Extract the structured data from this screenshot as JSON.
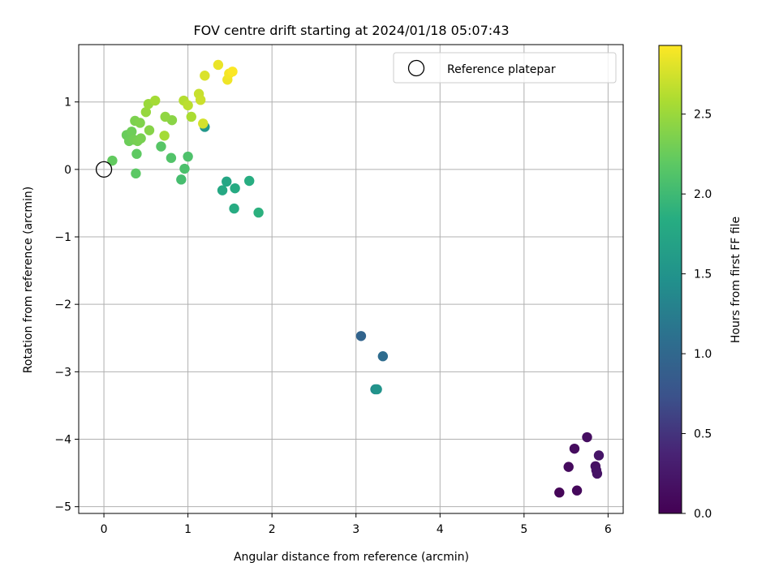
{
  "chart_data": {
    "type": "scatter",
    "title": "FOV centre drift starting at 2024/01/18 05:07:43",
    "xlabel": "Angular distance from reference (arcmin)",
    "ylabel": "Rotation from reference (arcmin)",
    "xlim": [
      -0.3,
      6.18
    ],
    "ylim": [
      -5.1,
      1.85
    ],
    "x_ticks": [
      0,
      1,
      2,
      3,
      4,
      5,
      6
    ],
    "y_ticks": [
      -5,
      -4,
      -3,
      -2,
      -1,
      0,
      1
    ],
    "grid": true,
    "legend": {
      "position": "top-right",
      "entries": [
        "Reference platepar"
      ]
    },
    "reference_point": {
      "x": 0,
      "y": 0,
      "label": "Reference platepar"
    },
    "colorbar": {
      "label": "Hours from first FF file",
      "colormap": "viridis",
      "range": [
        0,
        2.93
      ],
      "ticks": [
        0.0,
        0.5,
        1.0,
        1.5,
        2.0,
        2.5
      ]
    },
    "points": [
      {
        "x": 5.42,
        "y": -4.79,
        "h": 0.05
      },
      {
        "x": 5.63,
        "y": -4.76,
        "h": 0.08
      },
      {
        "x": 5.53,
        "y": -4.41,
        "h": 0.1
      },
      {
        "x": 5.6,
        "y": -4.14,
        "h": 0.12
      },
      {
        "x": 5.75,
        "y": -3.97,
        "h": 0.14
      },
      {
        "x": 5.85,
        "y": -4.4,
        "h": 0.16
      },
      {
        "x": 5.86,
        "y": -4.46,
        "h": 0.18
      },
      {
        "x": 5.87,
        "y": -4.51,
        "h": 0.2
      },
      {
        "x": 5.89,
        "y": -4.24,
        "h": 0.22
      },
      {
        "x": 3.06,
        "y": -2.47,
        "h": 0.95
      },
      {
        "x": 3.32,
        "y": -2.77,
        "h": 1.05
      },
      {
        "x": 3.23,
        "y": -3.26,
        "h": 1.4
      },
      {
        "x": 3.25,
        "y": -3.26,
        "h": 1.5
      },
      {
        "x": 1.2,
        "y": 0.63,
        "h": 1.55
      },
      {
        "x": 1.46,
        "y": -0.18,
        "h": 1.75
      },
      {
        "x": 1.41,
        "y": -0.31,
        "h": 1.78
      },
      {
        "x": 1.56,
        "y": -0.28,
        "h": 1.8
      },
      {
        "x": 1.55,
        "y": -0.58,
        "h": 1.82
      },
      {
        "x": 1.73,
        "y": -0.17,
        "h": 1.85
      },
      {
        "x": 1.84,
        "y": -0.64,
        "h": 1.88
      },
      {
        "x": 0.92,
        "y": -0.15,
        "h": 2.05
      },
      {
        "x": 0.96,
        "y": 0.01,
        "h": 2.08
      },
      {
        "x": 1.0,
        "y": 0.19,
        "h": 2.1
      },
      {
        "x": 0.8,
        "y": 0.17,
        "h": 2.12
      },
      {
        "x": 0.68,
        "y": 0.34,
        "h": 2.15
      },
      {
        "x": 0.38,
        "y": -0.06,
        "h": 2.18
      },
      {
        "x": 0.39,
        "y": 0.23,
        "h": 2.2
      },
      {
        "x": 0.1,
        "y": 0.13,
        "h": 2.22
      },
      {
        "x": 0.27,
        "y": 0.51,
        "h": 2.25
      },
      {
        "x": 0.3,
        "y": 0.42,
        "h": 2.27
      },
      {
        "x": 0.33,
        "y": 0.56,
        "h": 2.28
      },
      {
        "x": 0.36,
        "y": 0.44,
        "h": 2.3
      },
      {
        "x": 0.4,
        "y": 0.42,
        "h": 2.32
      },
      {
        "x": 0.44,
        "y": 0.46,
        "h": 2.33
      },
      {
        "x": 0.37,
        "y": 0.72,
        "h": 2.35
      },
      {
        "x": 0.43,
        "y": 0.69,
        "h": 2.37
      },
      {
        "x": 0.54,
        "y": 0.58,
        "h": 2.4
      },
      {
        "x": 0.72,
        "y": 0.5,
        "h": 2.55
      },
      {
        "x": 0.81,
        "y": 0.73,
        "h": 2.42
      },
      {
        "x": 0.73,
        "y": 0.78,
        "h": 2.45
      },
      {
        "x": 0.5,
        "y": 0.85,
        "h": 2.48
      },
      {
        "x": 0.53,
        "y": 0.97,
        "h": 2.5
      },
      {
        "x": 0.61,
        "y": 1.02,
        "h": 2.55
      },
      {
        "x": 1.04,
        "y": 0.78,
        "h": 2.58
      },
      {
        "x": 0.95,
        "y": 1.02,
        "h": 2.62
      },
      {
        "x": 1.0,
        "y": 0.95,
        "h": 2.65
      },
      {
        "x": 1.13,
        "y": 1.12,
        "h": 2.7
      },
      {
        "x": 1.15,
        "y": 1.03,
        "h": 2.72
      },
      {
        "x": 1.18,
        "y": 0.68,
        "h": 2.75
      },
      {
        "x": 1.2,
        "y": 1.39,
        "h": 2.78
      },
      {
        "x": 1.36,
        "y": 1.55,
        "h": 2.85
      },
      {
        "x": 1.47,
        "y": 1.33,
        "h": 2.87
      },
      {
        "x": 1.49,
        "y": 1.42,
        "h": 2.89
      },
      {
        "x": 1.53,
        "y": 1.45,
        "h": 2.92
      }
    ]
  }
}
